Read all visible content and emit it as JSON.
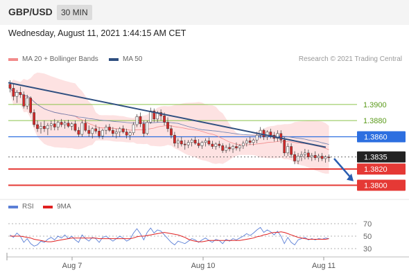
{
  "header": {
    "symbol": "GBP/USD",
    "timeframe": "30 MIN"
  },
  "timestamp": "Wednesday, August 11, 2021 1:44:15 AM CET",
  "credit": "Research © 2021 Trading Central",
  "price_legend": [
    {
      "label": "MA 20 + Bollinger Bands",
      "color": "#f28b8b"
    },
    {
      "label": "MA 50",
      "color": "#2f4f80"
    }
  ],
  "rsi_legend": [
    {
      "label": "RSI",
      "color": "#5b7fd6"
    },
    {
      "label": "9MA",
      "color": "#e02020"
    }
  ],
  "colors": {
    "up": "#ffffff",
    "down": "#d62828",
    "resistance": "#8bc34a",
    "support": "#e53935",
    "pivot": "#2d6fe0",
    "trend": "#2f4f80",
    "last": "#222222"
  },
  "chart_data": [
    {
      "type": "candlestick",
      "title": "GBP/USD",
      "ylim": [
        1.3785,
        1.3935
      ],
      "x_ticks": [
        "Aug 7",
        "Aug 10",
        "Aug 11"
      ],
      "price_labels": [
        {
          "text": "1.3900",
          "value": 1.39,
          "kind": "resistance"
        },
        {
          "text": "1.3880",
          "value": 1.388,
          "kind": "resistance"
        },
        {
          "text": "1.3860",
          "value": 1.386,
          "kind": "pivot"
        },
        {
          "text": "1.3835",
          "value": 1.3835,
          "kind": "last"
        },
        {
          "text": "1.3820",
          "value": 1.382,
          "kind": "support"
        },
        {
          "text": "1.3800",
          "value": 1.38,
          "kind": "support"
        }
      ],
      "series": [
        {
          "name": "MA 20 + Bollinger Bands"
        },
        {
          "name": "MA 50"
        }
      ],
      "trendline": {
        "from": 1.3927,
        "to": 1.3847
      },
      "forecast_arrow": {
        "from": 1.3833,
        "to": 1.3805
      },
      "candles": [
        [
          1.3925,
          1.393,
          1.3915,
          1.392
        ],
        [
          1.392,
          1.3925,
          1.3905,
          1.391
        ],
        [
          1.391,
          1.3918,
          1.3902,
          1.3915
        ],
        [
          1.3915,
          1.3922,
          1.3908,
          1.3912
        ],
        [
          1.3912,
          1.3916,
          1.3895,
          1.3898
        ],
        [
          1.3898,
          1.3912,
          1.3894,
          1.3908
        ],
        [
          1.3908,
          1.391,
          1.3888,
          1.389
        ],
        [
          1.389,
          1.3894,
          1.3872,
          1.3875
        ],
        [
          1.3875,
          1.388,
          1.3866,
          1.387
        ],
        [
          1.387,
          1.3878,
          1.3864,
          1.3873
        ],
        [
          1.3873,
          1.388,
          1.3866,
          1.387
        ],
        [
          1.387,
          1.3877,
          1.3862,
          1.3874
        ],
        [
          1.3874,
          1.388,
          1.3868,
          1.3876
        ],
        [
          1.3876,
          1.3882,
          1.3868,
          1.3872
        ],
        [
          1.3872,
          1.388,
          1.3868,
          1.3878
        ],
        [
          1.3878,
          1.3882,
          1.3872,
          1.3875
        ],
        [
          1.3875,
          1.388,
          1.387,
          1.3877
        ],
        [
          1.3877,
          1.3881,
          1.3871,
          1.3873
        ],
        [
          1.3873,
          1.3878,
          1.3868,
          1.3876
        ],
        [
          1.3876,
          1.388,
          1.3866,
          1.3868
        ],
        [
          1.3868,
          1.3872,
          1.386,
          1.3863
        ],
        [
          1.3863,
          1.388,
          1.386,
          1.3877
        ],
        [
          1.3877,
          1.3882,
          1.3866,
          1.3868
        ],
        [
          1.3868,
          1.3874,
          1.386,
          1.3864
        ],
        [
          1.3864,
          1.3872,
          1.3858,
          1.387
        ],
        [
          1.387,
          1.3875,
          1.3864,
          1.3867
        ],
        [
          1.3867,
          1.3872,
          1.3858,
          1.3861
        ],
        [
          1.3861,
          1.387,
          1.3857,
          1.3868
        ],
        [
          1.3868,
          1.3875,
          1.3863,
          1.3872
        ],
        [
          1.3872,
          1.3876,
          1.3866,
          1.3868
        ],
        [
          1.3868,
          1.3872,
          1.386,
          1.3864
        ],
        [
          1.3864,
          1.387,
          1.3858,
          1.3866
        ],
        [
          1.3866,
          1.3872,
          1.386,
          1.387
        ],
        [
          1.387,
          1.3874,
          1.3864,
          1.3866
        ],
        [
          1.3866,
          1.387,
          1.3858,
          1.3862
        ],
        [
          1.3862,
          1.3867,
          1.3856,
          1.3865
        ],
        [
          1.3865,
          1.3878,
          1.3862,
          1.3875
        ],
        [
          1.3875,
          1.3888,
          1.3872,
          1.3885
        ],
        [
          1.3885,
          1.389,
          1.3872,
          1.3876
        ],
        [
          1.3876,
          1.388,
          1.386,
          1.3864
        ],
        [
          1.3864,
          1.388,
          1.3862,
          1.3878
        ],
        [
          1.3878,
          1.3896,
          1.3876,
          1.3892
        ],
        [
          1.3892,
          1.3895,
          1.3878,
          1.3882
        ],
        [
          1.3882,
          1.3892,
          1.3878,
          1.389
        ],
        [
          1.389,
          1.3894,
          1.388,
          1.3886
        ],
        [
          1.3886,
          1.389,
          1.3874,
          1.3878
        ],
        [
          1.3878,
          1.3884,
          1.3866,
          1.387
        ],
        [
          1.387,
          1.3874,
          1.3858,
          1.3862
        ],
        [
          1.3862,
          1.3866,
          1.3848,
          1.3852
        ],
        [
          1.3852,
          1.3858,
          1.3846,
          1.3855
        ],
        [
          1.3855,
          1.386,
          1.3848,
          1.3851
        ],
        [
          1.3851,
          1.3856,
          1.3844,
          1.385
        ],
        [
          1.385,
          1.3856,
          1.3846,
          1.3853
        ],
        [
          1.3853,
          1.3858,
          1.3848,
          1.3856
        ],
        [
          1.3856,
          1.386,
          1.385,
          1.3852
        ],
        [
          1.3852,
          1.3857,
          1.3846,
          1.3849
        ],
        [
          1.3849,
          1.3855,
          1.3845,
          1.3853
        ],
        [
          1.3853,
          1.3858,
          1.3848,
          1.3855
        ],
        [
          1.3855,
          1.3859,
          1.3849,
          1.3851
        ],
        [
          1.3851,
          1.3855,
          1.3845,
          1.3848
        ],
        [
          1.3848,
          1.3853,
          1.3844,
          1.3851
        ],
        [
          1.3851,
          1.3855,
          1.3846,
          1.3849
        ],
        [
          1.3849,
          1.3852,
          1.384,
          1.3843
        ],
        [
          1.3843,
          1.385,
          1.384,
          1.3847
        ],
        [
          1.3847,
          1.3852,
          1.3842,
          1.3845
        ],
        [
          1.3845,
          1.385,
          1.384,
          1.3848
        ],
        [
          1.3848,
          1.3853,
          1.3843,
          1.3846
        ],
        [
          1.3846,
          1.3851,
          1.3842,
          1.3849
        ],
        [
          1.3849,
          1.3855,
          1.3845,
          1.3852
        ],
        [
          1.3852,
          1.3858,
          1.3848,
          1.3855
        ],
        [
          1.3855,
          1.386,
          1.385,
          1.3853
        ],
        [
          1.3853,
          1.3858,
          1.3849,
          1.3856
        ],
        [
          1.3856,
          1.3866,
          1.3852,
          1.3862
        ],
        [
          1.3862,
          1.3872,
          1.3858,
          1.3868
        ],
        [
          1.3868,
          1.387,
          1.3856,
          1.386
        ],
        [
          1.386,
          1.3868,
          1.3856,
          1.3866
        ],
        [
          1.3866,
          1.387,
          1.3858,
          1.3862
        ],
        [
          1.3862,
          1.3866,
          1.3854,
          1.3858
        ],
        [
          1.3858,
          1.3868,
          1.3854,
          1.3864
        ],
        [
          1.3864,
          1.3868,
          1.3852,
          1.3856
        ],
        [
          1.3856,
          1.386,
          1.3836,
          1.384
        ],
        [
          1.384,
          1.3852,
          1.3836,
          1.3848
        ],
        [
          1.3848,
          1.3852,
          1.3834,
          1.3838
        ],
        [
          1.3838,
          1.3842,
          1.3826,
          1.383
        ],
        [
          1.383,
          1.384,
          1.3826,
          1.3836
        ],
        [
          1.3836,
          1.3842,
          1.383,
          1.3838
        ],
        [
          1.3838,
          1.3845,
          1.3832,
          1.384
        ],
        [
          1.384,
          1.3844,
          1.3832,
          1.3835
        ],
        [
          1.3835,
          1.384,
          1.383,
          1.3837
        ],
        [
          1.3837,
          1.3842,
          1.3831,
          1.3834
        ],
        [
          1.3834,
          1.3839,
          1.3829,
          1.3836
        ],
        [
          1.3836,
          1.384,
          1.383,
          1.3833
        ],
        [
          1.3833,
          1.3837,
          1.3828,
          1.3835
        ],
        [
          1.3835,
          1.3838,
          1.3829,
          1.3834
        ]
      ]
    },
    {
      "type": "line",
      "title": "RSI",
      "ylim": [
        20,
        80
      ],
      "y_ticks": [
        70,
        50,
        30
      ],
      "series": [
        {
          "name": "RSI",
          "values": [
            52,
            48,
            55,
            50,
            40,
            46,
            38,
            34,
            36,
            42,
            40,
            45,
            48,
            44,
            50,
            47,
            52,
            46,
            50,
            44,
            40,
            52,
            46,
            42,
            48,
            46,
            40,
            48,
            50,
            46,
            42,
            46,
            50,
            47,
            42,
            45,
            55,
            62,
            54,
            44,
            56,
            63,
            55,
            60,
            58,
            52,
            46,
            40,
            36,
            42,
            40,
            38,
            42,
            46,
            44,
            40,
            44,
            47,
            43,
            40,
            45,
            43,
            38,
            45,
            42,
            46,
            44,
            47,
            50,
            54,
            51,
            55,
            60,
            64,
            56,
            60,
            57,
            52,
            58,
            50,
            38,
            48,
            40,
            36,
            44,
            46,
            48,
            44,
            46,
            44,
            46,
            45,
            47,
            46
          ]
        },
        {
          "name": "9MA",
          "values": [
            50,
            50,
            50,
            50,
            49,
            48,
            47,
            45,
            44,
            43,
            42,
            41,
            41,
            42,
            43,
            44,
            45,
            46,
            47,
            47,
            47,
            47,
            47,
            47,
            47,
            47,
            46,
            46,
            46,
            46,
            46,
            46,
            46,
            46,
            46,
            46,
            47,
            49,
            50,
            50,
            51,
            52,
            53,
            54,
            55,
            56,
            55,
            54,
            53,
            52,
            50,
            48,
            45,
            43,
            42,
            41,
            41,
            42,
            43,
            43,
            43,
            43,
            43,
            43,
            43,
            43,
            43,
            43,
            44,
            45,
            46,
            47,
            49,
            50,
            52,
            53,
            55,
            56,
            56,
            57,
            56,
            54,
            52,
            50,
            48,
            47,
            46,
            45,
            45,
            45,
            45,
            45,
            45,
            46
          ]
        }
      ]
    }
  ]
}
